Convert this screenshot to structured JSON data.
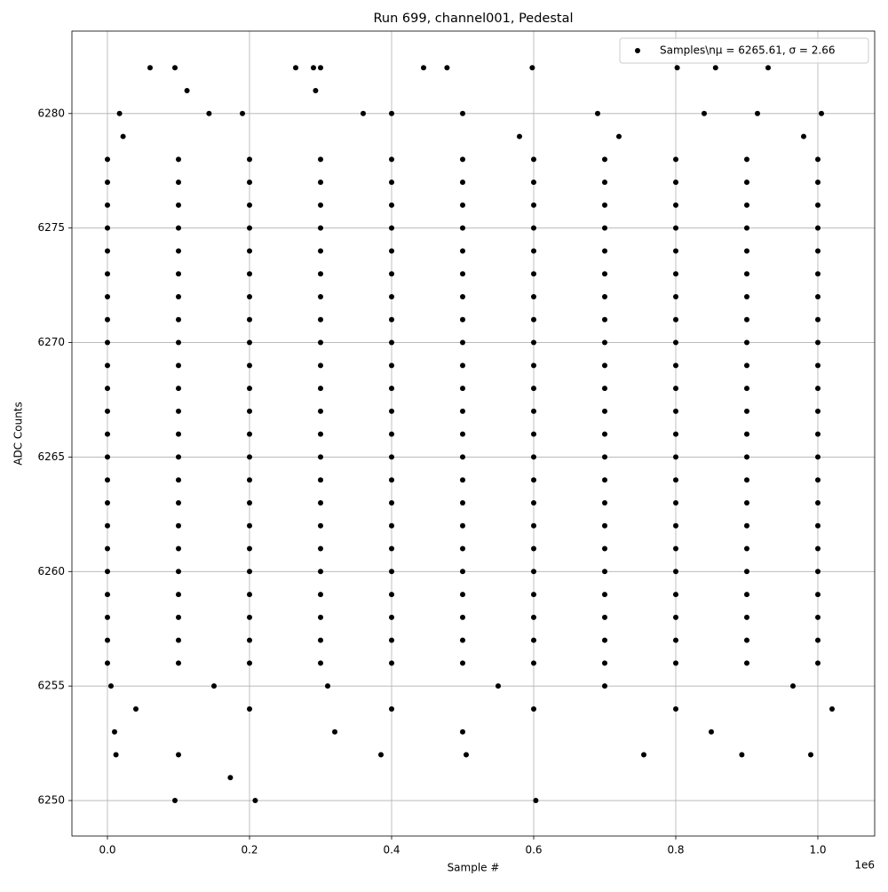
{
  "chart_data": {
    "type": "scatter",
    "title": "Run 699, channel001, Pedestal",
    "x_label": "Sample #",
    "y_label": "ADC Counts",
    "x_offset_label": "1e6",
    "xlim": [
      -0.05,
      1.08
    ],
    "xticks": [
      {
        "value": 0,
        "label": "0.0"
      },
      0.2,
      0.4,
      0.6,
      0.8,
      {
        "value": 1,
        "label": "1.0"
      }
    ],
    "ylim": [
      6248.45,
      6283.6
    ],
    "yticks": [
      6250,
      6255,
      6260,
      6265,
      6270,
      6275,
      6280
    ],
    "grid": true,
    "legend": "upper right",
    "series": [
      {
        "name": "Samples\\nμ = 6265.61, σ = 2.66",
        "color": "#000000",
        "x": [
          0,
          0.1,
          0.2,
          0.3,
          0.4,
          0.5,
          0.6,
          0.7,
          0.8,
          0.9,
          1,
          0,
          0.1,
          0.2,
          0.3,
          0.4,
          0.5,
          0.6,
          0.7,
          0.8,
          0.9,
          1,
          0,
          0.1,
          0.2,
          0.3,
          0.4,
          0.5,
          0.6,
          0.7,
          0.8,
          0.9,
          1,
          0,
          0.1,
          0.2,
          0.3,
          0.4,
          0.5,
          0.6,
          0.7,
          0.8,
          0.9,
          1,
          0,
          0.1,
          0.2,
          0.3,
          0.4,
          0.5,
          0.6,
          0.7,
          0.8,
          0.9,
          1,
          0,
          0.1,
          0.2,
          0.3,
          0.4,
          0.5,
          0.6,
          0.7,
          0.8,
          0.9,
          1,
          0,
          0.1,
          0.2,
          0.3,
          0.4,
          0.5,
          0.6,
          0.7,
          0.8,
          0.9,
          1,
          0,
          0.1,
          0.2,
          0.3,
          0.4,
          0.5,
          0.6,
          0.7,
          0.8,
          0.9,
          1,
          0,
          0.1,
          0.2,
          0.3,
          0.4,
          0.5,
          0.6,
          0.7,
          0.8,
          0.9,
          1,
          0,
          0.1,
          0.2,
          0.3,
          0.4,
          0.5,
          0.6,
          0.7,
          0.8,
          0.9,
          1,
          0,
          0.1,
          0.2,
          0.3,
          0.4,
          0.5,
          0.6,
          0.7,
          0.8,
          0.9,
          1,
          0,
          0.1,
          0.2,
          0.3,
          0.4,
          0.5,
          0.6,
          0.7,
          0.8,
          0.9,
          1,
          0,
          0.1,
          0.2,
          0.3,
          0.4,
          0.5,
          0.6,
          0.7,
          0.8,
          0.9,
          1,
          0,
          0.1,
          0.2,
          0.3,
          0.4,
          0.5,
          0.6,
          0.7,
          0.8,
          0.9,
          1,
          0,
          0.1,
          0.2,
          0.3,
          0.4,
          0.5,
          0.6,
          0.7,
          0.8,
          0.9,
          1,
          0,
          0.1,
          0.2,
          0.3,
          0.4,
          0.5,
          0.6,
          0.7,
          0.8,
          0.9,
          1,
          0,
          0.1,
          0.2,
          0.3,
          0.4,
          0.5,
          0.6,
          0.7,
          0.8,
          0.9,
          1,
          0,
          0.1,
          0.2,
          0.3,
          0.4,
          0.5,
          0.6,
          0.7,
          0.8,
          0.9,
          1,
          0,
          0.1,
          0.2,
          0.3,
          0.4,
          0.5,
          0.6,
          0.7,
          0.8,
          0.9,
          1,
          0,
          0.1,
          0.2,
          0.3,
          0.4,
          0.5,
          0.6,
          0.7,
          0.8,
          0.9,
          1,
          0,
          0.1,
          0.2,
          0.3,
          0.4,
          0.5,
          0.6,
          0.7,
          0.8,
          0.9,
          1,
          0,
          0.1,
          0.2,
          0.3,
          0.4,
          0.5,
          0.6,
          0.7,
          0.8,
          0.9,
          1,
          0,
          0.1,
          0.2,
          0.3,
          0.4,
          0.5,
          0.6,
          0.7,
          0.8,
          0.9,
          1,
          0.06,
          0.095,
          0.112,
          0.265,
          0.29,
          0.3,
          0.293,
          0.445,
          0.478,
          0.598,
          0.802,
          0.856,
          0.93,
          0.017,
          0.143,
          0.19,
          0.36,
          0.4,
          0.5,
          0.69,
          0.84,
          0.915,
          1.005,
          0.022,
          0.58,
          0.72,
          0.98,
          0.095,
          0.208,
          0.603,
          0.173,
          0.012,
          0.1,
          0.385,
          0.505,
          0.755,
          0.893,
          0.99,
          0.01,
          0.32,
          0.5,
          0.85,
          0.04,
          0.2,
          0.4,
          0.6,
          0.8,
          1.02,
          0.005,
          0.15,
          0.31,
          0.55,
          0.7,
          0.965
        ],
        "values": [
          6256,
          6256,
          6256,
          6256,
          6256,
          6256,
          6256,
          6256,
          6256,
          6256,
          6256,
          6257,
          6257,
          6257,
          6257,
          6257,
          6257,
          6257,
          6257,
          6257,
          6257,
          6257,
          6258,
          6258,
          6258,
          6258,
          6258,
          6258,
          6258,
          6258,
          6258,
          6258,
          6258,
          6259,
          6259,
          6259,
          6259,
          6259,
          6259,
          6259,
          6259,
          6259,
          6259,
          6259,
          6260,
          6260,
          6260,
          6260,
          6260,
          6260,
          6260,
          6260,
          6260,
          6260,
          6260,
          6261,
          6261,
          6261,
          6261,
          6261,
          6261,
          6261,
          6261,
          6261,
          6261,
          6261,
          6262,
          6262,
          6262,
          6262,
          6262,
          6262,
          6262,
          6262,
          6262,
          6262,
          6262,
          6263,
          6263,
          6263,
          6263,
          6263,
          6263,
          6263,
          6263,
          6263,
          6263,
          6263,
          6264,
          6264,
          6264,
          6264,
          6264,
          6264,
          6264,
          6264,
          6264,
          6264,
          6264,
          6265,
          6265,
          6265,
          6265,
          6265,
          6265,
          6265,
          6265,
          6265,
          6265,
          6265,
          6266,
          6266,
          6266,
          6266,
          6266,
          6266,
          6266,
          6266,
          6266,
          6266,
          6266,
          6267,
          6267,
          6267,
          6267,
          6267,
          6267,
          6267,
          6267,
          6267,
          6267,
          6267,
          6268,
          6268,
          6268,
          6268,
          6268,
          6268,
          6268,
          6268,
          6268,
          6268,
          6268,
          6269,
          6269,
          6269,
          6269,
          6269,
          6269,
          6269,
          6269,
          6269,
          6269,
          6269,
          6270,
          6270,
          6270,
          6270,
          6270,
          6270,
          6270,
          6270,
          6270,
          6270,
          6270,
          6271,
          6271,
          6271,
          6271,
          6271,
          6271,
          6271,
          6271,
          6271,
          6271,
          6271,
          6272,
          6272,
          6272,
          6272,
          6272,
          6272,
          6272,
          6272,
          6272,
          6272,
          6272,
          6273,
          6273,
          6273,
          6273,
          6273,
          6273,
          6273,
          6273,
          6273,
          6273,
          6273,
          6274,
          6274,
          6274,
          6274,
          6274,
          6274,
          6274,
          6274,
          6274,
          6274,
          6274,
          6275,
          6275,
          6275,
          6275,
          6275,
          6275,
          6275,
          6275,
          6275,
          6275,
          6275,
          6276,
          6276,
          6276,
          6276,
          6276,
          6276,
          6276,
          6276,
          6276,
          6276,
          6276,
          6277,
          6277,
          6277,
          6277,
          6277,
          6277,
          6277,
          6277,
          6277,
          6277,
          6277,
          6278,
          6278,
          6278,
          6278,
          6278,
          6278,
          6278,
          6278,
          6278,
          6278,
          6278,
          6282,
          6282,
          6281,
          6282,
          6282,
          6282,
          6281,
          6282,
          6282,
          6282,
          6282,
          6282,
          6282,
          6280,
          6280,
          6280,
          6280,
          6280,
          6280,
          6280,
          6280,
          6280,
          6280,
          6279,
          6279,
          6279,
          6279,
          6250,
          6250,
          6250,
          6251,
          6252,
          6252,
          6252,
          6252,
          6252,
          6252,
          6252,
          6253,
          6253,
          6253,
          6253,
          6254,
          6254,
          6254,
          6254,
          6254,
          6254,
          6255,
          6255,
          6255,
          6255,
          6255,
          6255
        ]
      }
    ]
  }
}
